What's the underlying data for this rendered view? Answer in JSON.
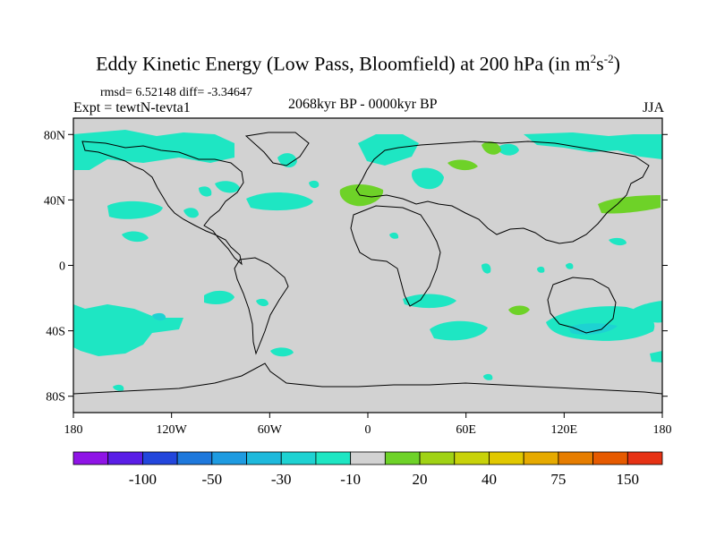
{
  "title": {
    "main": "Eddy Kinetic Energy (Low Pass, Bloomfield) at 200 hPa (in m",
    "sup1": "2",
    "mid": "s",
    "sup2": "-2",
    "end": ")"
  },
  "stats": "rmsd= 6.52148 diff= -3.34647",
  "experiment": "Expt = tewtN-tevta1",
  "period": "2068kyr BP - 0000kyr BP",
  "season": "JJA",
  "axes": {
    "lat_ticks": [
      {
        "label": "80N",
        "value": 80
      },
      {
        "label": "40N",
        "value": 40
      },
      {
        "label": "0",
        "value": 0
      },
      {
        "label": "40S",
        "value": -40
      },
      {
        "label": "80S",
        "value": -80
      }
    ],
    "lon_ticks": [
      {
        "label": "180",
        "value": -180
      },
      {
        "label": "120W",
        "value": -120
      },
      {
        "label": "60W",
        "value": -60
      },
      {
        "label": "0",
        "value": 0
      },
      {
        "label": "60E",
        "value": 60
      },
      {
        "label": "120E",
        "value": 120
      },
      {
        "label": "180",
        "value": 180
      }
    ],
    "lat_range": [
      -90,
      90
    ],
    "lon_range": [
      -180,
      180
    ]
  },
  "colorbar": {
    "colors": [
      "#8f14e6",
      "#5a1ee6",
      "#2346dc",
      "#1e78dc",
      "#1e9be1",
      "#1eb9dc",
      "#1ed2d2",
      "#1ee6c3",
      "#d2d2d2",
      "#6ed228",
      "#a0d214",
      "#c8d20a",
      "#e1c800",
      "#e6aa00",
      "#e67d00",
      "#e65a00",
      "#e63214"
    ],
    "labels": [
      {
        "text": "-100",
        "boundary": 2
      },
      {
        "text": "-50",
        "boundary": 4
      },
      {
        "text": "-30",
        "boundary": 6
      },
      {
        "text": "-10",
        "boundary": 8
      },
      {
        "text": "20",
        "boundary": 10
      },
      {
        "text": "40",
        "boundary": 12
      },
      {
        "text": "75",
        "boundary": 14
      },
      {
        "text": "150",
        "boundary": 16
      }
    ]
  },
  "colors": {
    "background": "#d2d2d2",
    "negative_anomaly": "#1ee6c3",
    "positive_anomaly": "#6ed228",
    "coastline": "#000000"
  }
}
